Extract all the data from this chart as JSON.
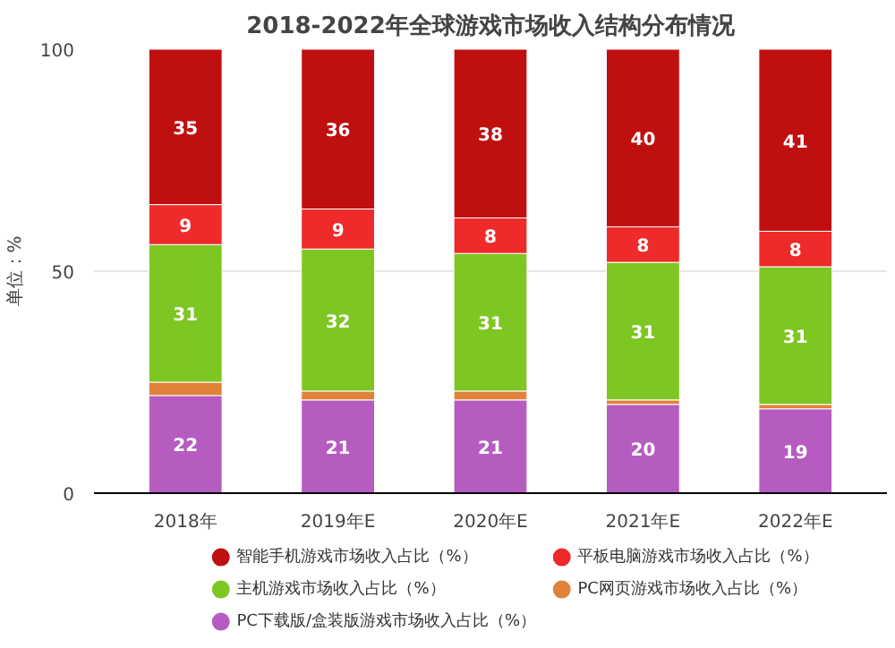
{
  "chart_data": {
    "type": "bar",
    "stacked": true,
    "title": "2018-2022年全球游戏市场收入结构分布情况",
    "ylabel": "单位：%",
    "categories": [
      "2018年",
      "2019年E",
      "2020年E",
      "2021年E",
      "2022年E"
    ],
    "series": [
      {
        "name": "PC下载版/盒装版游戏市场收入占比（%）",
        "color": "#b65cc0",
        "values": [
          22,
          21,
          21,
          20,
          19
        ],
        "value_labels": [
          "22",
          "21",
          "21",
          "20",
          "19"
        ]
      },
      {
        "name": "PC网页游戏市场收入占比（%）",
        "color": "#e0823a",
        "values": [
          3,
          2,
          2,
          1,
          1
        ],
        "value_labels": [
          null,
          null,
          null,
          null,
          null
        ]
      },
      {
        "name": "主机游戏市场收入占比（%）",
        "color": "#7ec622",
        "values": [
          31,
          32,
          31,
          31,
          31
        ],
        "value_labels": [
          "31",
          "32",
          "31",
          "31",
          "31"
        ]
      },
      {
        "name": "平板电脑游戏市场收入占比（%）",
        "color": "#ee2a2a",
        "values": [
          9,
          9,
          8,
          8,
          8
        ],
        "value_labels": [
          "9",
          "9",
          "8",
          "8",
          "8"
        ]
      },
      {
        "name": "智能手机游戏市场收入占比（%）",
        "color": "#c00f0f",
        "values": [
          35,
          36,
          38,
          40,
          41
        ],
        "value_labels": [
          "35",
          "36",
          "38",
          "40",
          "41"
        ]
      }
    ],
    "ylim": [
      0,
      100
    ],
    "yticks": [
      0,
      50,
      100
    ],
    "grid": "y",
    "legend": "bottom"
  }
}
